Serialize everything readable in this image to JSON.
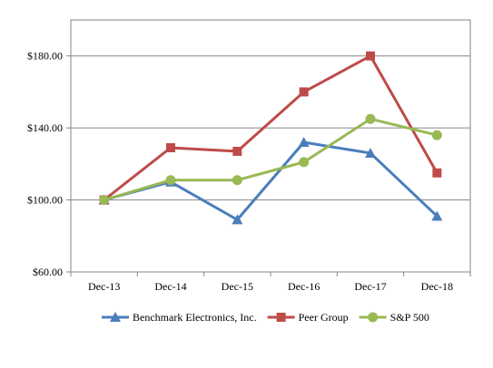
{
  "chart_data": {
    "type": "line",
    "title": "",
    "xlabel": "",
    "ylabel": "",
    "categories": [
      "Dec-13",
      "Dec-14",
      "Dec-15",
      "Dec-16",
      "Dec-17",
      "Dec-18"
    ],
    "ylim": [
      60,
      200
    ],
    "yticks": [
      60,
      100,
      140,
      180
    ],
    "ytick_labels": [
      "$60.00",
      "$100.00",
      "$140.00",
      "$180.00"
    ],
    "grid": true,
    "legend_position": "bottom",
    "series": [
      {
        "name": "Benchmark Electronics, Inc.",
        "color": "#4a7ebb",
        "marker": "triangle",
        "values": [
          100,
          110,
          89,
          132,
          126,
          91
        ]
      },
      {
        "name": "Peer Group",
        "color": "#be4b48",
        "marker": "square",
        "values": [
          100,
          129,
          127,
          160,
          180,
          115
        ]
      },
      {
        "name": "S&P 500",
        "color": "#98b954",
        "marker": "circle",
        "values": [
          100,
          111,
          111,
          121,
          145,
          136
        ]
      }
    ]
  }
}
